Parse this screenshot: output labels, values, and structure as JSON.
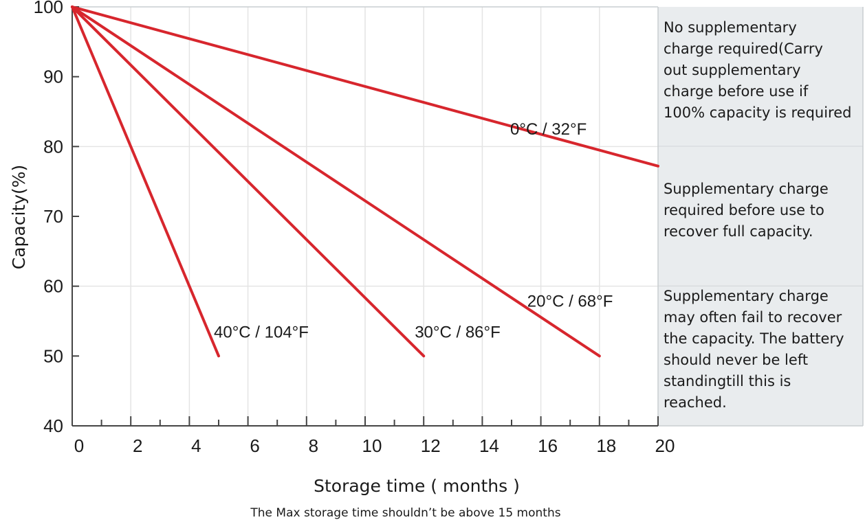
{
  "chart_data": {
    "type": "line",
    "xlabel": "Storage time ( months )",
    "ylabel": "Capacity(%)",
    "note": "The Max storage time shouldn’t be above 15 months",
    "xlim": [
      0,
      20
    ],
    "ylim": [
      40,
      100
    ],
    "x_ticks": [
      "0",
      "2",
      "4",
      "6",
      "8",
      "10",
      "12",
      "14",
      "16",
      "18",
      "20"
    ],
    "y_ticks": [
      "40",
      "50",
      "60",
      "70",
      "80",
      "90",
      "100"
    ],
    "grid": "vertical lines at even months, horizontal lines at 60 and 80",
    "line_color": "#d7262d",
    "series": [
      {
        "name": "0°C  / 32°F",
        "x": [
          0,
          20
        ],
        "y": [
          100,
          77.2
        ]
      },
      {
        "name": "20°C / 68°F",
        "x": [
          0,
          18
        ],
        "y": [
          100,
          50
        ]
      },
      {
        "name": "30°C / 86°F",
        "x": [
          0,
          12
        ],
        "y": [
          100,
          50
        ]
      },
      {
        "name": "40°C / 104°F",
        "x": [
          0,
          5
        ],
        "y": [
          100,
          50
        ]
      }
    ],
    "zones": [
      {
        "range": [
          80,
          100
        ],
        "text": "No supplementary\ncharge required(Carry\nout supplementary\ncharge before use if\n100% capacity is required"
      },
      {
        "range": [
          60,
          80
        ],
        "text": "Supplementary charge\nrequired before use to\nrecover full capacity."
      },
      {
        "range": [
          40,
          60
        ],
        "text": "Supplementary charge\nmay often fail to recover\nthe capacity. The battery\nshould never be left\nstandingtill this is\nreached."
      }
    ],
    "zone_color": "#e9ecee"
  }
}
